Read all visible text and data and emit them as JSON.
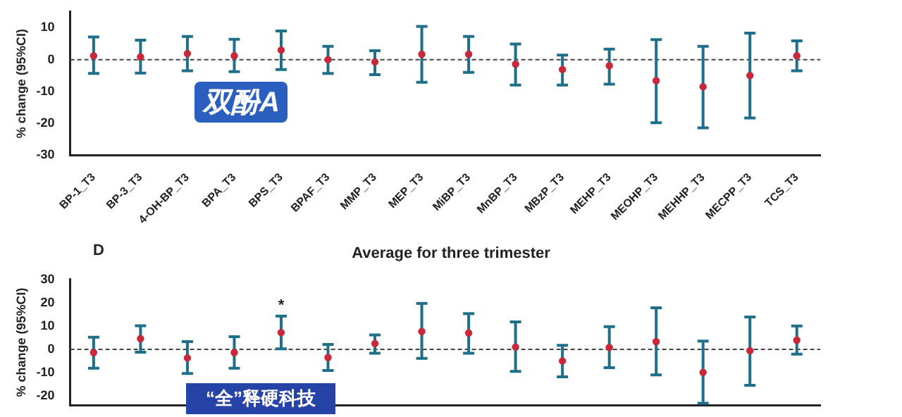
{
  "chart_data": [
    {
      "type": "scatter",
      "ylabel": "% change (95%CI)",
      "categories": [
        "BP-1_T3",
        "BP-3_T3",
        "4-OH-BP_T3",
        "BPA_T3",
        "BPS_T3",
        "BPAF_T3",
        "MMP_T3",
        "MEP_T3",
        "MiBP_T3",
        "MnBP_T3",
        "MBzP_T3",
        "MEHP_T3",
        "MEOHP_T3",
        "MEHHP_T3",
        "MECPP_T3",
        "TCS_T3"
      ],
      "series": [
        {
          "color": "#c8283a",
          "values": [
            1.2,
            0.9,
            1.9,
            1.2,
            3,
            0,
            -0.7,
            1.7,
            1.7,
            -1.4,
            -3.1,
            -1.9,
            -6.6,
            -8.5,
            -5,
            1.2
          ],
          "errors": [
            [
              -4.3,
              7.1
            ],
            [
              -4.2,
              6.1
            ],
            [
              -3.5,
              7.3
            ],
            [
              -3.8,
              6.4
            ],
            [
              -3.1,
              9
            ],
            [
              -4.3,
              4.2
            ],
            [
              -4.7,
              2.8
            ],
            [
              -7.1,
              10.4
            ],
            [
              -4,
              7.3
            ],
            [
              -8,
              4.9
            ],
            [
              -8,
              1.4
            ],
            [
              -7.7,
              3.3
            ],
            [
              -19.8,
              6.3
            ],
            [
              -21.4,
              4.2
            ],
            [
              -18.3,
              8.3
            ],
            [
              -3.5,
              5.9
            ]
          ]
        }
      ],
      "ylim": [
        -30,
        15
      ],
      "yticks": [
        -30,
        -20,
        -10,
        0,
        10
      ],
      "grid": false,
      "legend": false,
      "marker": "circle",
      "ref_lines": [
        {
          "axis": "y",
          "value": 0,
          "line_style": "dashed"
        }
      ],
      "annotations": [
        "双酚A"
      ]
    },
    {
      "type": "scatter",
      "title": "Average for three trimester",
      "ylabel": "% change (95%CI)",
      "categories": [
        "BP-1_T3",
        "BP-3_T3",
        "4-OH-BP_T3",
        "BPA_T3",
        "BPS_T3",
        "BPAF_T3",
        "MMP_T3",
        "MEP_T3",
        "MiBP_T3",
        "MnBP_T3",
        "MBzP_T3",
        "MEHP_T3",
        "MEOHP_T3",
        "MEHHP_T3",
        "MECPP_T3",
        "TCS_T3"
      ],
      "tick_labels": "y",
      "series": [
        {
          "color": "#c8283a",
          "values": [
            -1.4,
            4.6,
            -3.7,
            -1.4,
            7.2,
            -3.5,
            2.5,
            7.7,
            7,
            1,
            -5,
            0.8,
            3.3,
            -9.9,
            -0.6,
            3.9
          ],
          "errors": [
            [
              -8.1,
              5.2
            ],
            [
              -1.2,
              10.1
            ],
            [
              -10.4,
              3.3
            ],
            [
              -8.1,
              5.4
            ],
            [
              0.2,
              14.3
            ],
            [
              -9.1,
              2.1
            ],
            [
              -1.7,
              6.2
            ],
            [
              -3.9,
              19.7
            ],
            [
              -1.7,
              15.3
            ],
            [
              -9.5,
              11.8
            ],
            [
              -11.8,
              1.7
            ],
            [
              -7.9,
              9.7
            ],
            [
              -11,
              17.8
            ],
            [
              -23.2,
              3.5
            ],
            [
              -15.5,
              13.9
            ],
            [
              -2.1,
              10
            ]
          ]
        }
      ],
      "ylim": [
        -24,
        30
      ],
      "yticks": [
        -20,
        -10,
        0,
        10,
        20,
        30
      ],
      "grid": false,
      "legend": false,
      "marker": "circle",
      "ref_lines": [
        {
          "axis": "y",
          "value": 0,
          "line_style": "dashed"
        }
      ],
      "annotations": [
        "D",
        {
          "text": "*",
          "x": "BPS_T3",
          "y": 14.3
        },
        "“全”释硬科技"
      ]
    }
  ]
}
